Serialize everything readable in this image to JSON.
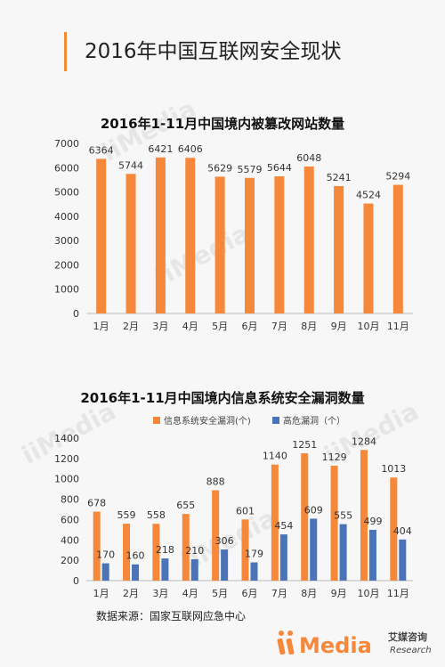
{
  "header": {
    "title": "2016年中国互联网安全现状"
  },
  "chart_data": [
    {
      "type": "bar",
      "title": "2016年1-11月中国境内被篡改网站数量",
      "categories": [
        "1月",
        "2月",
        "3月",
        "4月",
        "5月",
        "6月",
        "7月",
        "8月",
        "9月",
        "10月",
        "11月"
      ],
      "values": [
        6364,
        5744,
        6421,
        6406,
        5629,
        5579,
        5644,
        6048,
        5241,
        4524,
        5294
      ],
      "ylim": [
        0,
        7000
      ],
      "yticks": [
        0,
        1000,
        2000,
        3000,
        4000,
        5000,
        6000,
        7000
      ],
      "color": "#f5883a",
      "grid": false
    },
    {
      "type": "bar",
      "title": "2016年1-11月中国境内信息系统安全漏洞数量",
      "categories": [
        "1月",
        "2月",
        "3月",
        "4月",
        "5月",
        "6月",
        "7月",
        "8月",
        "9月",
        "10月",
        "11月"
      ],
      "series": [
        {
          "name": "信息系统安全漏洞(个)",
          "values": [
            678,
            559,
            558,
            655,
            888,
            601,
            1140,
            1251,
            1129,
            1284,
            1013
          ],
          "color": "#f5883a"
        },
        {
          "name": "高危漏洞（个）",
          "values": [
            170,
            160,
            218,
            210,
            306,
            179,
            454,
            609,
            555,
            499,
            404
          ],
          "color": "#4a73b8"
        }
      ],
      "ylim": [
        0,
        1400
      ],
      "yticks": [
        0,
        200,
        400,
        600,
        800,
        1000,
        1200,
        1400
      ],
      "legend": "top",
      "grid": false
    }
  ],
  "footer": {
    "source": "数据来源：国家互联网应急中心"
  },
  "branding": {
    "logo_text": "iiMedia",
    "logo_cn": "艾媒咨询",
    "logo_sub": "Research",
    "watermark": "iiMedia"
  }
}
